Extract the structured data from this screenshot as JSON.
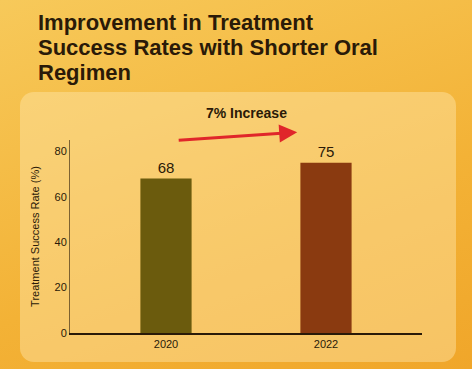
{
  "chart_data": {
    "type": "bar",
    "title": "Improvement in Treatment Success Rates with Shorter Oral Regimen",
    "ylabel": "Treatment Success Rate (%)",
    "categories": [
      "2020",
      "2022"
    ],
    "values": [
      68,
      75
    ],
    "colors": [
      "#6b5b0d",
      "#8a3a10"
    ],
    "ylim": [
      0,
      85
    ],
    "yticks": [
      0,
      20,
      40,
      60,
      80
    ],
    "grid": false,
    "data_labels": true,
    "annotations": [
      "7% Increase"
    ]
  }
}
